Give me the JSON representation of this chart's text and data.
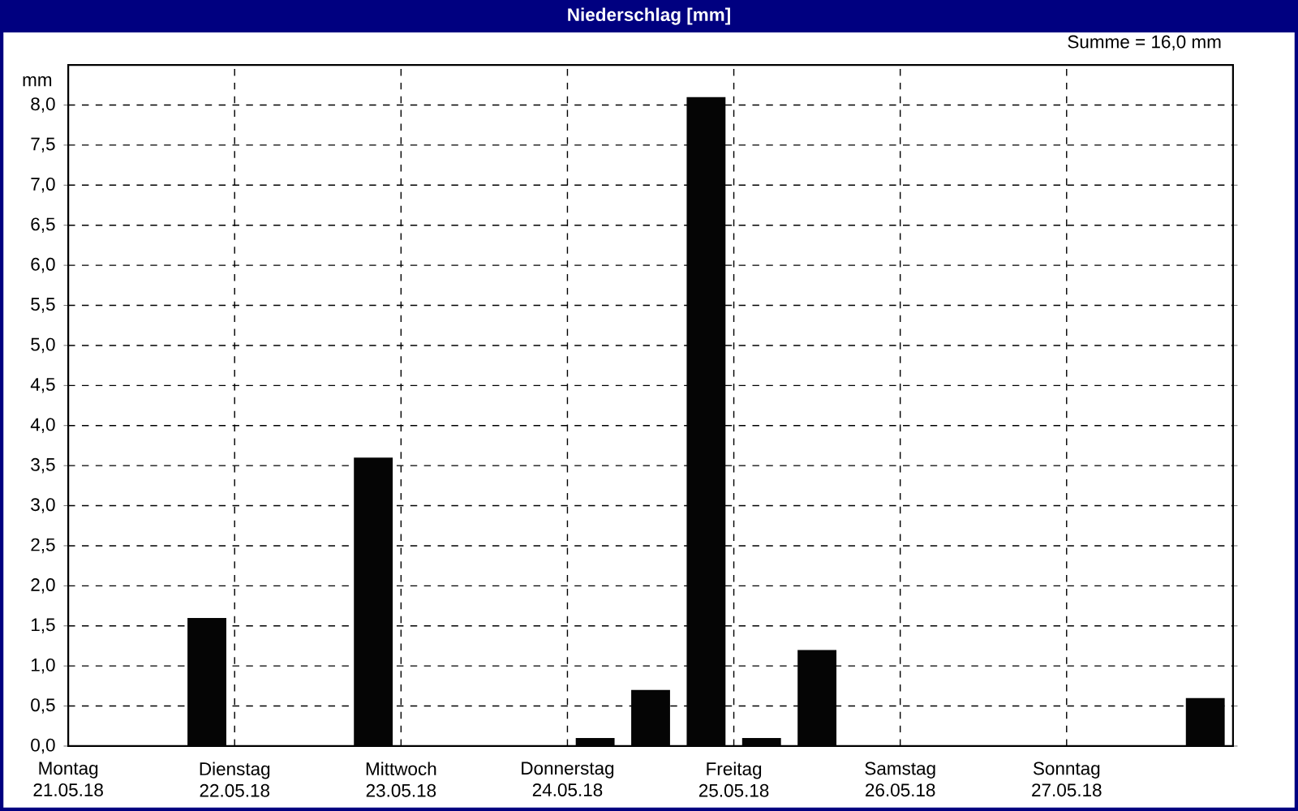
{
  "chart_data": {
    "type": "bar",
    "title": "Niederschlag [mm]",
    "ylabel": "mm",
    "annotations": [
      "Summe = 16,0 mm"
    ],
    "categories": [
      "Montag 21.05.18",
      null,
      null,
      "Dienstag 22.05.18",
      null,
      null,
      "Mittwoch 23.05.18",
      null,
      null,
      "Donnerstag 24.05.18",
      null,
      null,
      "Freitag 25.05.18",
      null,
      null,
      "Samstag 26.05.18",
      null,
      null,
      "Sonntag 27.05.18",
      null,
      null
    ],
    "values": [
      0,
      0,
      1.6,
      0,
      0,
      3.6,
      0,
      0,
      0,
      0.1,
      0.7,
      8.1,
      0.1,
      1.2,
      0,
      0,
      0,
      0,
      0,
      0,
      0.6
    ],
    "color": "#050505",
    "ylim": [
      0,
      8.5
    ],
    "yticks": [
      {
        "value": 0,
        "label": "0,0"
      },
      {
        "value": 0.5,
        "label": "0,5"
      },
      {
        "value": 1,
        "label": "1,0"
      },
      {
        "value": 1.5,
        "label": "1,5"
      },
      {
        "value": 2,
        "label": "2,0"
      },
      {
        "value": 2.5,
        "label": "2,5"
      },
      {
        "value": 3,
        "label": "3,0"
      },
      {
        "value": 3.5,
        "label": "3,5"
      },
      {
        "value": 4,
        "label": "4,0"
      },
      {
        "value": 4.5,
        "label": "4,5"
      },
      {
        "value": 5,
        "label": "5,0"
      },
      {
        "value": 5.5,
        "label": "5,5"
      },
      {
        "value": 6,
        "label": "6,0"
      },
      {
        "value": 6.5,
        "label": "6,5"
      },
      {
        "value": 7,
        "label": "7,0"
      },
      {
        "value": 7.5,
        "label": "7,5"
      },
      {
        "value": 8,
        "label": "8,0"
      }
    ],
    "grid": true
  }
}
